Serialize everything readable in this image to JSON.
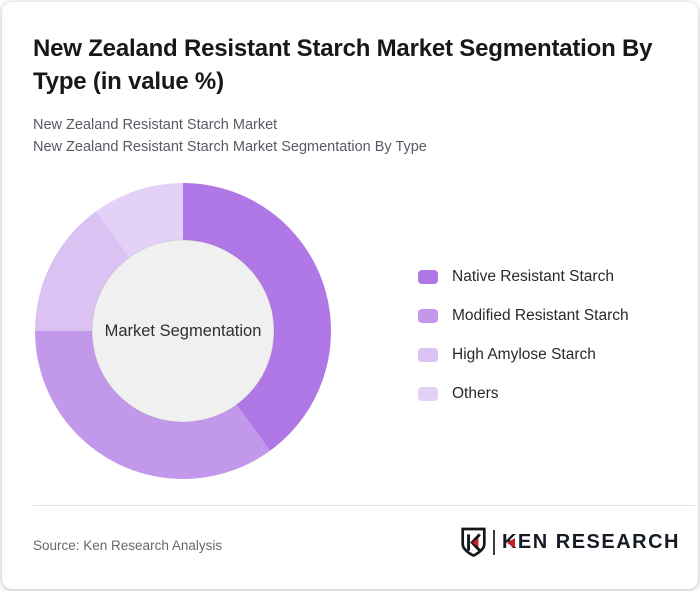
{
  "header": {
    "title": "New Zealand Resistant Starch Market Segmentation By Type (in value %)",
    "subtitle_line1": "New Zealand Resistant Starch Market",
    "subtitle_line2": "New Zealand Resistant Starch Market Segmentation By Type"
  },
  "chart_data": {
    "type": "pie",
    "donut": true,
    "title": "New Zealand Resistant Starch Market Segmentation By Type (in value %)",
    "units": "value %",
    "center_label": "Market Segmentation",
    "legend_position": "right",
    "start_angle_deg": 0,
    "inner_radius_ratio": 0.61,
    "inner_circle_color": "#f0f0f0",
    "values_are_estimates": true,
    "series": [
      {
        "name": "Native Resistant Starch",
        "value": 40,
        "color": "#b078e6"
      },
      {
        "name": "Modified Resistant Starch",
        "value": 35,
        "color": "#c298ea"
      },
      {
        "name": "High Amylose Starch",
        "value": 15,
        "color": "#dbc2f3"
      },
      {
        "name": "Others",
        "value": 10,
        "color": "#e4d1f8"
      }
    ]
  },
  "footer": {
    "source": "Source: Ken Research Analysis",
    "logo": {
      "text": "KEN RESEARCH",
      "accent_color": "#c42127",
      "text_color": "#151a24"
    }
  }
}
